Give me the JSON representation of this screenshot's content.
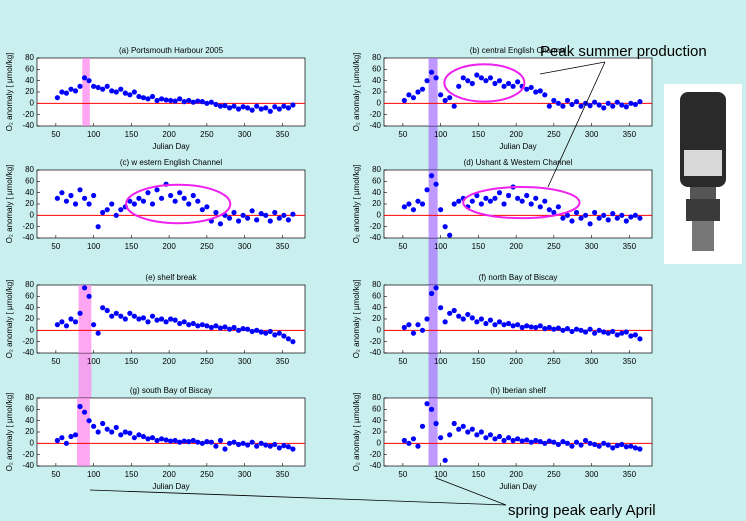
{
  "chart_data": [
    {
      "type": "scatter",
      "title": "(a) Portsmouth Harbour    2005",
      "xlabel": "Julian Day",
      "ylabel": "O₂ anomaly [ µmol/kg]",
      "color": "#0000ff",
      "x": [
        52,
        58,
        64,
        70,
        76,
        82,
        88,
        94,
        100,
        106,
        112,
        118,
        124,
        130,
        136,
        142,
        148,
        154,
        160,
        166,
        172,
        178,
        184,
        190,
        196,
        202,
        208,
        214,
        220,
        226,
        232,
        238,
        244,
        250,
        256,
        262,
        268,
        274,
        280,
        286,
        292,
        298,
        304,
        310,
        316,
        322,
        328,
        334,
        340,
        346,
        352,
        358,
        364
      ],
      "values": [
        10,
        20,
        18,
        25,
        22,
        30,
        45,
        40,
        30,
        28,
        25,
        30,
        22,
        20,
        25,
        18,
        15,
        20,
        12,
        10,
        8,
        12,
        5,
        8,
        6,
        5,
        4,
        8,
        3,
        5,
        2,
        4,
        3,
        0,
        2,
        -2,
        -5,
        -4,
        -8,
        -5,
        -10,
        -6,
        -8,
        -12,
        -5,
        -10,
        -8,
        -14,
        -6,
        -10,
        -5,
        -8,
        -3
      ],
      "xlim": [
        25,
        380
      ],
      "ylim": [
        -40,
        80
      ],
      "xticks": [
        50,
        100,
        150,
        200,
        250,
        300,
        350
      ],
      "yticks": [
        -40,
        -20,
        0,
        20,
        40,
        60,
        80
      ],
      "reference_line": {
        "y": 0,
        "color": "#ff0000"
      },
      "highlight": {
        "x": [
          85,
          95
        ],
        "color": "#ff88ee"
      }
    },
    {
      "type": "scatter",
      "title": "(b) central English Channel",
      "xlabel": "Julian Day",
      "ylabel": "O₂ anomaly [ µmol/kg]",
      "color": "#0000ff",
      "x": [
        52,
        58,
        64,
        70,
        76,
        82,
        88,
        94,
        100,
        106,
        112,
        118,
        124,
        130,
        136,
        142,
        148,
        154,
        160,
        166,
        172,
        178,
        184,
        190,
        196,
        202,
        208,
        214,
        220,
        226,
        232,
        238,
        244,
        250,
        256,
        262,
        268,
        274,
        280,
        286,
        292,
        298,
        304,
        310,
        316,
        322,
        328,
        334,
        340,
        346,
        352,
        358,
        364
      ],
      "values": [
        5,
        15,
        10,
        20,
        25,
        40,
        55,
        45,
        15,
        5,
        10,
        -5,
        30,
        45,
        40,
        35,
        50,
        45,
        40,
        45,
        35,
        40,
        30,
        35,
        30,
        38,
        30,
        25,
        28,
        20,
        22,
        15,
        -5,
        5,
        0,
        -5,
        5,
        -2,
        3,
        -5,
        0,
        -4,
        2,
        -3,
        -8,
        0,
        -5,
        2,
        -3,
        -6,
        0,
        -2,
        3
      ],
      "xlim": [
        25,
        380
      ],
      "ylim": [
        -40,
        80
      ],
      "xticks": [
        50,
        100,
        150,
        200,
        250,
        300,
        350
      ],
      "yticks": [
        -40,
        -20,
        0,
        20,
        40,
        60,
        80
      ],
      "reference_line": {
        "y": 0,
        "color": "#ff0000"
      },
      "highlight": {
        "x": [
          84,
          96
        ],
        "color": "#aa77ff"
      },
      "link_below": true,
      "ellipse": {
        "x": [
          105,
          211
        ],
        "y": [
          3,
          69
        ],
        "color": "#ee22ee"
      }
    },
    {
      "type": "scatter",
      "title": "(c) w estern English Channel",
      "ylabel": "O₂ anomaly [ µmol/kg]",
      "color": "#0000ff",
      "x": [
        52,
        58,
        64,
        70,
        76,
        82,
        88,
        94,
        100,
        106,
        112,
        118,
        124,
        130,
        136,
        142,
        148,
        154,
        160,
        166,
        172,
        178,
        184,
        190,
        196,
        202,
        208,
        214,
        220,
        226,
        232,
        238,
        244,
        250,
        256,
        262,
        268,
        274,
        280,
        286,
        292,
        298,
        304,
        310,
        316,
        322,
        328,
        334,
        340,
        346,
        352,
        358,
        364
      ],
      "values": [
        30,
        40,
        25,
        35,
        20,
        45,
        30,
        20,
        35,
        -20,
        5,
        10,
        20,
        0,
        10,
        15,
        25,
        20,
        30,
        25,
        40,
        20,
        45,
        30,
        55,
        35,
        25,
        40,
        30,
        20,
        35,
        25,
        10,
        15,
        -10,
        5,
        -15,
        0,
        -5,
        5,
        -10,
        0,
        -5,
        8,
        -8,
        3,
        0,
        -10,
        5,
        -5,
        0,
        -8,
        2
      ],
      "xlim": [
        25,
        380
      ],
      "ylim": [
        -40,
        80
      ],
      "xticks": [
        50,
        100,
        150,
        200,
        250,
        300,
        350
      ],
      "yticks": [
        -40,
        -20,
        0,
        20,
        40,
        60,
        80
      ],
      "reference_line": {
        "y": 0,
        "color": "#ff0000"
      },
      "ellipse": {
        "x": [
          143,
          281
        ],
        "y": [
          -14,
          54
        ],
        "color": "#ee22ee"
      }
    },
    {
      "type": "scatter",
      "title": "(d) Ushant & Western Channel",
      "ylabel": "O₂ anomaly [ µmol/kg]",
      "color": "#0000ff",
      "x": [
        52,
        58,
        64,
        70,
        76,
        82,
        88,
        94,
        100,
        106,
        112,
        118,
        124,
        130,
        136,
        142,
        148,
        154,
        160,
        166,
        172,
        178,
        184,
        190,
        196,
        202,
        208,
        214,
        220,
        226,
        232,
        238,
        244,
        250,
        256,
        262,
        268,
        274,
        280,
        286,
        292,
        298,
        304,
        310,
        316,
        322,
        328,
        334,
        340,
        346,
        352,
        358,
        364
      ],
      "values": [
        15,
        20,
        10,
        25,
        20,
        45,
        70,
        55,
        10,
        -20,
        -35,
        20,
        25,
        30,
        15,
        25,
        35,
        20,
        30,
        25,
        30,
        40,
        20,
        35,
        50,
        30,
        25,
        35,
        20,
        30,
        15,
        25,
        10,
        5,
        15,
        -5,
        0,
        -10,
        5,
        -5,
        0,
        -15,
        5,
        -5,
        0,
        -8,
        3,
        -5,
        0,
        -10,
        -3,
        0,
        -5
      ],
      "xlim": [
        25,
        380
      ],
      "ylim": [
        -40,
        80
      ],
      "xticks": [
        50,
        100,
        150,
        200,
        250,
        300,
        350
      ],
      "yticks": [
        -40,
        -20,
        0,
        20,
        40,
        60,
        80
      ],
      "reference_line": {
        "y": 0,
        "color": "#ff0000"
      },
      "highlight": {
        "x": [
          84,
          96
        ],
        "color": "#aa77ff"
      },
      "link_below": true,
      "ellipse": {
        "x": [
          130,
          284
        ],
        "y": [
          -5,
          50
        ],
        "color": "#ee22ee"
      }
    },
    {
      "type": "scatter",
      "title": "(e) shelf break",
      "ylabel": "O₂ anomaly [ µmol/kg]",
      "color": "#0000ff",
      "x": [
        52,
        58,
        64,
        70,
        76,
        82,
        88,
        94,
        100,
        106,
        112,
        118,
        124,
        130,
        136,
        142,
        148,
        154,
        160,
        166,
        172,
        178,
        184,
        190,
        196,
        202,
        208,
        214,
        220,
        226,
        232,
        238,
        244,
        250,
        256,
        262,
        268,
        274,
        280,
        286,
        292,
        298,
        304,
        310,
        316,
        322,
        328,
        334,
        340,
        346,
        352,
        358,
        364
      ],
      "values": [
        10,
        15,
        8,
        20,
        15,
        30,
        75,
        60,
        10,
        -5,
        40,
        35,
        25,
        30,
        25,
        20,
        30,
        25,
        20,
        22,
        15,
        25,
        18,
        20,
        15,
        20,
        18,
        12,
        15,
        10,
        12,
        8,
        10,
        8,
        5,
        8,
        4,
        6,
        2,
        5,
        0,
        3,
        2,
        -2,
        0,
        -3,
        -5,
        -2,
        -8,
        -5,
        -10,
        -15,
        -20
      ],
      "xlim": [
        25,
        380
      ],
      "ylim": [
        -40,
        80
      ],
      "xticks": [
        50,
        100,
        150,
        200,
        250,
        300,
        350
      ],
      "yticks": [
        -40,
        -20,
        0,
        20,
        40,
        60,
        80
      ],
      "reference_line": {
        "y": 0,
        "color": "#ff0000"
      },
      "highlight": {
        "x": [
          80,
          97
        ],
        "color": "#ff88ee"
      },
      "link_below": true
    },
    {
      "type": "scatter",
      "title": "(f) north Bay of Biscay",
      "ylabel": "O₂ anomaly [ µmol/kg]",
      "color": "#0000ff",
      "x": [
        52,
        58,
        64,
        70,
        76,
        82,
        88,
        94,
        100,
        106,
        112,
        118,
        124,
        130,
        136,
        142,
        148,
        154,
        160,
        166,
        172,
        178,
        184,
        190,
        196,
        202,
        208,
        214,
        220,
        226,
        232,
        238,
        244,
        250,
        256,
        262,
        268,
        274,
        280,
        286,
        292,
        298,
        304,
        310,
        316,
        322,
        328,
        334,
        340,
        346,
        352,
        358,
        364
      ],
      "values": [
        5,
        10,
        -5,
        10,
        0,
        20,
        65,
        75,
        40,
        15,
        30,
        35,
        25,
        20,
        28,
        22,
        15,
        20,
        12,
        18,
        10,
        15,
        10,
        12,
        8,
        10,
        5,
        8,
        6,
        5,
        8,
        3,
        5,
        2,
        4,
        0,
        3,
        -2,
        2,
        0,
        -3,
        2,
        -5,
        0,
        -3,
        -5,
        -2,
        -8,
        -5,
        -3,
        -10,
        -8,
        -15
      ],
      "xlim": [
        25,
        380
      ],
      "ylim": [
        -40,
        80
      ],
      "xticks": [
        50,
        100,
        150,
        200,
        250,
        300,
        350
      ],
      "yticks": [
        -40,
        -20,
        0,
        20,
        40,
        60,
        80
      ],
      "reference_line": {
        "y": 0,
        "color": "#ff0000"
      },
      "highlight": {
        "x": [
          84,
          96
        ],
        "color": "#aa77ff"
      },
      "link_below": true
    },
    {
      "type": "scatter",
      "title": "(g) south Bay of Biscay",
      "xlabel": "Julian Day",
      "ylabel": "O₂ anomaly [ µmol/kg]",
      "color": "#0000ff",
      "x": [
        52,
        58,
        64,
        70,
        76,
        82,
        88,
        94,
        100,
        106,
        112,
        118,
        124,
        130,
        136,
        142,
        148,
        154,
        160,
        166,
        172,
        178,
        184,
        190,
        196,
        202,
        208,
        214,
        220,
        226,
        232,
        238,
        244,
        250,
        256,
        262,
        268,
        274,
        280,
        286,
        292,
        298,
        304,
        310,
        316,
        322,
        328,
        334,
        340,
        346,
        352,
        358,
        364
      ],
      "values": [
        5,
        10,
        0,
        12,
        15,
        65,
        55,
        40,
        30,
        20,
        35,
        25,
        20,
        28,
        15,
        20,
        18,
        10,
        15,
        12,
        8,
        10,
        5,
        8,
        6,
        4,
        5,
        2,
        4,
        3,
        5,
        2,
        0,
        3,
        2,
        -5,
        5,
        -10,
        0,
        2,
        -2,
        0,
        -3,
        2,
        -5,
        0,
        -3,
        -5,
        -2,
        -8,
        -4,
        -6,
        -10
      ],
      "xlim": [
        25,
        380
      ],
      "ylim": [
        -40,
        80
      ],
      "xticks": [
        50,
        100,
        150,
        200,
        250,
        300,
        350
      ],
      "yticks": [
        -40,
        -20,
        0,
        20,
        40,
        60,
        80
      ],
      "reference_line": {
        "y": 0,
        "color": "#ff0000"
      },
      "highlight": {
        "x": [
          78,
          95
        ],
        "color": "#ff88ee"
      }
    },
    {
      "type": "scatter",
      "title": "(h) Iberian shelf",
      "xlabel": "Julian Day",
      "ylabel": "O₂ anomaly [ µmol/kg]",
      "color": "#0000ff",
      "x": [
        52,
        58,
        64,
        70,
        76,
        82,
        88,
        94,
        100,
        106,
        112,
        118,
        124,
        130,
        136,
        142,
        148,
        154,
        160,
        166,
        172,
        178,
        184,
        190,
        196,
        202,
        208,
        214,
        220,
        226,
        232,
        238,
        244,
        250,
        256,
        262,
        268,
        274,
        280,
        286,
        292,
        298,
        304,
        310,
        316,
        322,
        328,
        334,
        340,
        346,
        352,
        358,
        364
      ],
      "values": [
        5,
        0,
        8,
        -5,
        30,
        70,
        60,
        35,
        10,
        -30,
        15,
        35,
        25,
        30,
        20,
        25,
        15,
        20,
        10,
        15,
        8,
        12,
        5,
        10,
        5,
        8,
        4,
        6,
        2,
        5,
        3,
        0,
        4,
        2,
        -2,
        3,
        0,
        -5,
        2,
        -3,
        5,
        0,
        -2,
        -5,
        0,
        -3,
        -8,
        -4,
        -2,
        -6,
        -5,
        -8,
        -10
      ],
      "xlim": [
        25,
        380
      ],
      "ylim": [
        -40,
        80
      ],
      "xticks": [
        50,
        100,
        150,
        200,
        250,
        300,
        350
      ],
      "yticks": [
        -40,
        -20,
        0,
        20,
        40,
        60,
        80
      ],
      "reference_line": {
        "y": 0,
        "color": "#ff0000"
      },
      "highlight": {
        "x": [
          84,
          96
        ],
        "color": "#aa77ff"
      }
    }
  ],
  "annotations": [
    "Peak summer production",
    "spring peak early April"
  ]
}
